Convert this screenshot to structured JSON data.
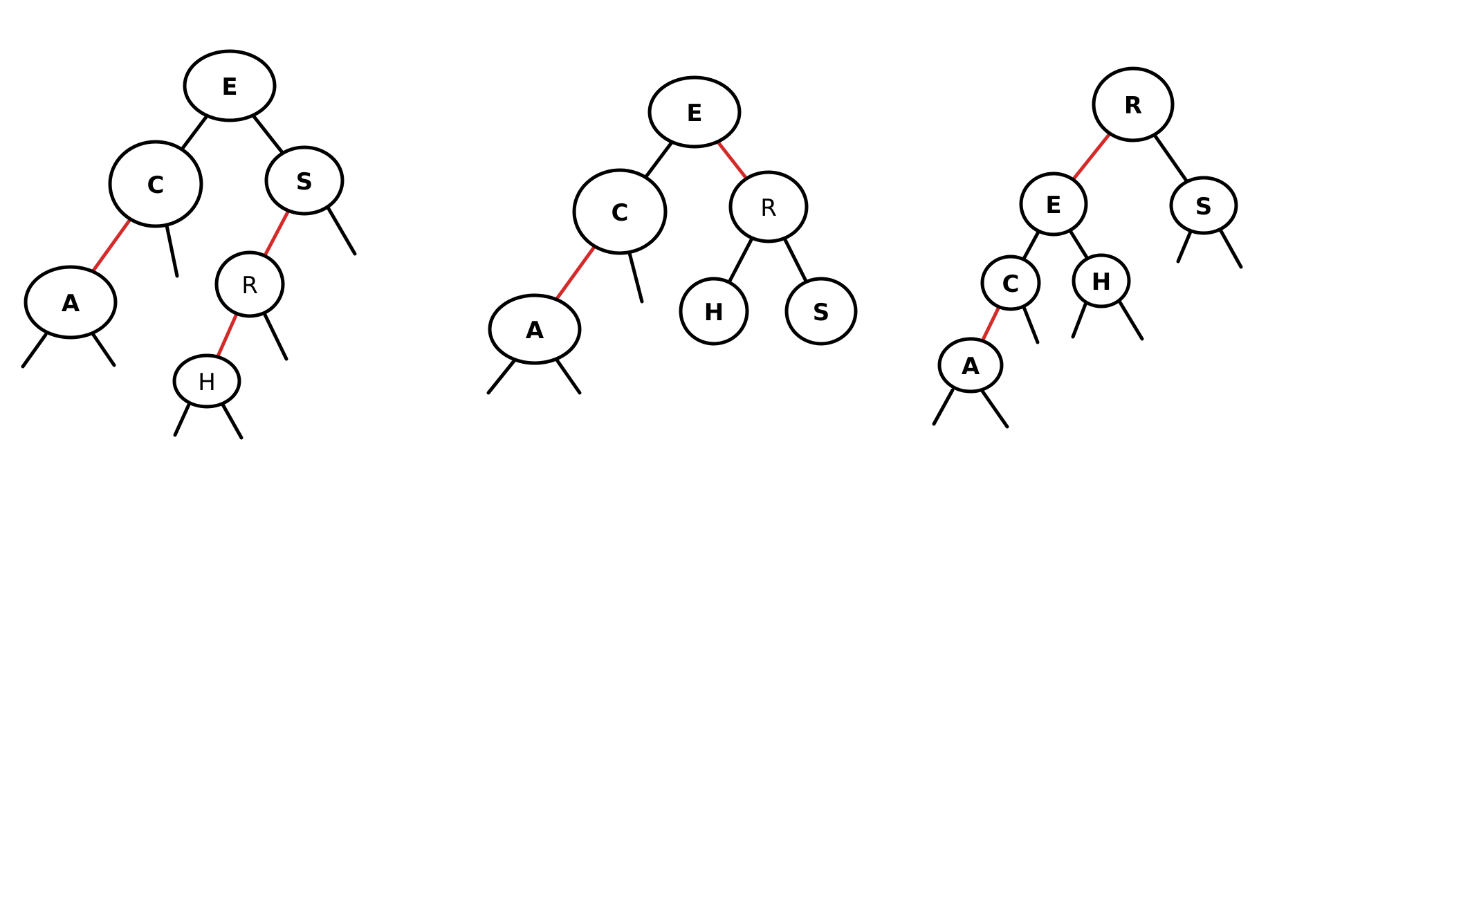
{
  "colors": {
    "background": "#ffffff",
    "black_link": "#000000",
    "red_link": "#d42a2a"
  },
  "trees": [
    {
      "name": "tree-1",
      "nodes": [
        {
          "id": "E",
          "label": "E",
          "style": "bold"
        },
        {
          "id": "C",
          "label": "C",
          "style": "bold"
        },
        {
          "id": "S",
          "label": "S",
          "style": "bold"
        },
        {
          "id": "A",
          "label": "A",
          "style": "bold"
        },
        {
          "id": "R",
          "label": "R",
          "style": "normal"
        },
        {
          "id": "H",
          "label": "H",
          "style": "normal"
        }
      ],
      "links": [
        {
          "from": "E",
          "to": "C",
          "color": "black"
        },
        {
          "from": "E",
          "to": "S",
          "color": "black"
        },
        {
          "from": "C",
          "to": "A",
          "color": "red"
        },
        {
          "from": "S",
          "to": "R",
          "color": "red"
        },
        {
          "from": "R",
          "to": "H",
          "color": "red"
        }
      ]
    },
    {
      "name": "tree-2",
      "nodes": [
        {
          "id": "E",
          "label": "E",
          "style": "bold"
        },
        {
          "id": "C",
          "label": "C",
          "style": "bold"
        },
        {
          "id": "R",
          "label": "R",
          "style": "normal"
        },
        {
          "id": "A",
          "label": "A",
          "style": "bold"
        },
        {
          "id": "H",
          "label": "H",
          "style": "bold"
        },
        {
          "id": "S",
          "label": "S",
          "style": "bold"
        }
      ],
      "links": [
        {
          "from": "E",
          "to": "C",
          "color": "black"
        },
        {
          "from": "E",
          "to": "R",
          "color": "red"
        },
        {
          "from": "C",
          "to": "A",
          "color": "red"
        },
        {
          "from": "R",
          "to": "H",
          "color": "black"
        },
        {
          "from": "R",
          "to": "S",
          "color": "black"
        }
      ]
    },
    {
      "name": "tree-3",
      "nodes": [
        {
          "id": "R",
          "label": "R",
          "style": "bold"
        },
        {
          "id": "E",
          "label": "E",
          "style": "bold"
        },
        {
          "id": "S",
          "label": "S",
          "style": "bold"
        },
        {
          "id": "C",
          "label": "C",
          "style": "bold"
        },
        {
          "id": "H",
          "label": "H",
          "style": "bold"
        },
        {
          "id": "A",
          "label": "A",
          "style": "bold"
        }
      ],
      "links": [
        {
          "from": "R",
          "to": "E",
          "color": "red"
        },
        {
          "from": "R",
          "to": "S",
          "color": "black"
        },
        {
          "from": "E",
          "to": "C",
          "color": "black"
        },
        {
          "from": "E",
          "to": "H",
          "color": "black"
        },
        {
          "from": "C",
          "to": "A",
          "color": "red"
        }
      ]
    }
  ]
}
